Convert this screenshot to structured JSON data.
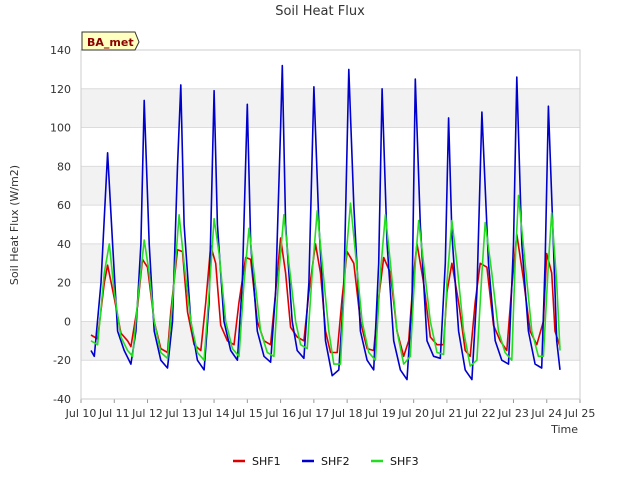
{
  "chart_data": {
    "type": "line",
    "title": "Soil Heat Flux",
    "xlabel": "Time",
    "ylabel": "Soil Heat Flux (W/m2)",
    "ylim": [
      -40,
      140
    ],
    "xlim": [
      10,
      25
    ],
    "yticks": [
      -40,
      -20,
      0,
      20,
      40,
      60,
      80,
      100,
      120,
      140
    ],
    "xticks": [
      {
        "v": 10,
        "label": "Jul 10"
      },
      {
        "v": 11,
        "label": "Jul 11"
      },
      {
        "v": 12,
        "label": "Jul 12"
      },
      {
        "v": 13,
        "label": "Jul 13"
      },
      {
        "v": 14,
        "label": "Jul 14"
      },
      {
        "v": 15,
        "label": "Jul 15"
      },
      {
        "v": 16,
        "label": "Jul 16"
      },
      {
        "v": 17,
        "label": "Jul 17"
      },
      {
        "v": 18,
        "label": "Jul 18"
      },
      {
        "v": 19,
        "label": "Jul 19"
      },
      {
        "v": 20,
        "label": "Jul 20"
      },
      {
        "v": 21,
        "label": "Jul 21"
      },
      {
        "v": 22,
        "label": "Jul 22"
      },
      {
        "v": 23,
        "label": "Jul 23"
      },
      {
        "v": 24,
        "label": "Jul 24"
      },
      {
        "v": 25,
        "label": "Jul 25"
      }
    ],
    "badge": "BA_met",
    "series": [
      {
        "name": "SHF1",
        "color": "#dd0000",
        "points": [
          [
            10.3,
            -7
          ],
          [
            10.5,
            -9
          ],
          [
            10.7,
            20
          ],
          [
            10.8,
            29
          ],
          [
            11.0,
            12
          ],
          [
            11.2,
            -6
          ],
          [
            11.4,
            -10
          ],
          [
            11.5,
            -13
          ],
          [
            11.7,
            8
          ],
          [
            11.85,
            32
          ],
          [
            12.0,
            28
          ],
          [
            12.2,
            0
          ],
          [
            12.4,
            -14
          ],
          [
            12.6,
            -16
          ],
          [
            12.7,
            5
          ],
          [
            12.9,
            37
          ],
          [
            13.05,
            36
          ],
          [
            13.2,
            5
          ],
          [
            13.4,
            -12
          ],
          [
            13.6,
            -15
          ],
          [
            13.75,
            10
          ],
          [
            13.9,
            39
          ],
          [
            14.05,
            30
          ],
          [
            14.2,
            -2
          ],
          [
            14.4,
            -10
          ],
          [
            14.6,
            -12
          ],
          [
            14.75,
            10
          ],
          [
            14.95,
            33
          ],
          [
            15.1,
            32
          ],
          [
            15.3,
            0
          ],
          [
            15.5,
            -10
          ],
          [
            15.7,
            -12
          ],
          [
            15.85,
            15
          ],
          [
            16.0,
            43
          ],
          [
            16.15,
            25
          ],
          [
            16.3,
            -3
          ],
          [
            16.5,
            -8
          ],
          [
            16.7,
            -10
          ],
          [
            16.85,
            15
          ],
          [
            17.05,
            40
          ],
          [
            17.2,
            25
          ],
          [
            17.35,
            -5
          ],
          [
            17.5,
            -16
          ],
          [
            17.7,
            -16
          ],
          [
            17.85,
            12
          ],
          [
            18.0,
            36
          ],
          [
            18.2,
            30
          ],
          [
            18.4,
            0
          ],
          [
            18.6,
            -14
          ],
          [
            18.8,
            -15
          ],
          [
            18.95,
            12
          ],
          [
            19.1,
            33
          ],
          [
            19.3,
            25
          ],
          [
            19.5,
            -5
          ],
          [
            19.7,
            -18
          ],
          [
            19.85,
            -10
          ],
          [
            20.0,
            25
          ],
          [
            20.1,
            40
          ],
          [
            20.3,
            20
          ],
          [
            20.5,
            -8
          ],
          [
            20.7,
            -12
          ],
          [
            20.9,
            -12
          ],
          [
            21.0,
            15
          ],
          [
            21.15,
            30
          ],
          [
            21.35,
            10
          ],
          [
            21.55,
            -15
          ],
          [
            21.7,
            -18
          ],
          [
            21.85,
            10
          ],
          [
            22.0,
            30
          ],
          [
            22.2,
            28
          ],
          [
            22.4,
            -2
          ],
          [
            22.6,
            -10
          ],
          [
            22.8,
            -15
          ],
          [
            22.95,
            18
          ],
          [
            23.1,
            45
          ],
          [
            23.3,
            22
          ],
          [
            23.5,
            -5
          ],
          [
            23.7,
            -12
          ],
          [
            23.9,
            0
          ],
          [
            24.0,
            35
          ],
          [
            24.15,
            25
          ],
          [
            24.25,
            -5
          ],
          [
            24.4,
            -13
          ]
        ]
      },
      {
        "name": "SHF2",
        "color": "#0000cc",
        "points": [
          [
            10.3,
            -15
          ],
          [
            10.4,
            -18
          ],
          [
            10.6,
            20
          ],
          [
            10.8,
            87
          ],
          [
            10.95,
            40
          ],
          [
            11.1,
            -5
          ],
          [
            11.3,
            -15
          ],
          [
            11.5,
            -22
          ],
          [
            11.65,
            -5
          ],
          [
            11.8,
            40
          ],
          [
            11.9,
            114
          ],
          [
            12.05,
            40
          ],
          [
            12.2,
            -5
          ],
          [
            12.4,
            -20
          ],
          [
            12.6,
            -24
          ],
          [
            12.75,
            0
          ],
          [
            12.9,
            80
          ],
          [
            13.0,
            122
          ],
          [
            13.1,
            50
          ],
          [
            13.3,
            0
          ],
          [
            13.5,
            -20
          ],
          [
            13.7,
            -25
          ],
          [
            13.85,
            10
          ],
          [
            14.0,
            119
          ],
          [
            14.1,
            50
          ],
          [
            14.3,
            0
          ],
          [
            14.5,
            -15
          ],
          [
            14.7,
            -20
          ],
          [
            14.85,
            20
          ],
          [
            15.0,
            112
          ],
          [
            15.1,
            40
          ],
          [
            15.3,
            -5
          ],
          [
            15.5,
            -18
          ],
          [
            15.7,
            -21
          ],
          [
            15.85,
            15
          ],
          [
            16.0,
            100
          ],
          [
            16.05,
            132
          ],
          [
            16.15,
            50
          ],
          [
            16.35,
            0
          ],
          [
            16.5,
            -15
          ],
          [
            16.7,
            -19
          ],
          [
            16.85,
            20
          ],
          [
            17.0,
            121
          ],
          [
            17.15,
            50
          ],
          [
            17.35,
            -10
          ],
          [
            17.55,
            -28
          ],
          [
            17.75,
            -25
          ],
          [
            17.9,
            15
          ],
          [
            18.05,
            130
          ],
          [
            18.2,
            60
          ],
          [
            18.4,
            -5
          ],
          [
            18.6,
            -20
          ],
          [
            18.8,
            -25
          ],
          [
            18.95,
            30
          ],
          [
            19.05,
            120
          ],
          [
            19.2,
            40
          ],
          [
            19.4,
            -10
          ],
          [
            19.6,
            -25
          ],
          [
            19.8,
            -30
          ],
          [
            19.95,
            10
          ],
          [
            20.05,
            125
          ],
          [
            20.2,
            50
          ],
          [
            20.4,
            -10
          ],
          [
            20.6,
            -18
          ],
          [
            20.8,
            -19
          ],
          [
            20.95,
            30
          ],
          [
            21.05,
            105
          ],
          [
            21.15,
            45
          ],
          [
            21.35,
            -5
          ],
          [
            21.55,
            -25
          ],
          [
            21.75,
            -30
          ],
          [
            21.9,
            15
          ],
          [
            22.05,
            108
          ],
          [
            22.25,
            30
          ],
          [
            22.45,
            -10
          ],
          [
            22.65,
            -20
          ],
          [
            22.85,
            -22
          ],
          [
            23.0,
            40
          ],
          [
            23.1,
            126
          ],
          [
            23.25,
            40
          ],
          [
            23.45,
            -5
          ],
          [
            23.65,
            -22
          ],
          [
            23.85,
            -24
          ],
          [
            23.95,
            30
          ],
          [
            24.05,
            111
          ],
          [
            24.2,
            40
          ],
          [
            24.3,
            -10
          ],
          [
            24.4,
            -25
          ]
        ]
      },
      {
        "name": "SHF3",
        "color": "#22dd22",
        "points": [
          [
            10.3,
            -10
          ],
          [
            10.5,
            -12
          ],
          [
            10.7,
            25
          ],
          [
            10.85,
            40
          ],
          [
            11.0,
            15
          ],
          [
            11.2,
            -8
          ],
          [
            11.4,
            -15
          ],
          [
            11.55,
            -18
          ],
          [
            11.7,
            10
          ],
          [
            11.9,
            42
          ],
          [
            12.05,
            25
          ],
          [
            12.2,
            0
          ],
          [
            12.4,
            -16
          ],
          [
            12.6,
            -19
          ],
          [
            12.75,
            10
          ],
          [
            12.95,
            55
          ],
          [
            13.1,
            30
          ],
          [
            13.3,
            0
          ],
          [
            13.5,
            -16
          ],
          [
            13.7,
            -20
          ],
          [
            13.85,
            15
          ],
          [
            14.0,
            53
          ],
          [
            14.15,
            35
          ],
          [
            14.35,
            0
          ],
          [
            14.55,
            -14
          ],
          [
            14.75,
            -18
          ],
          [
            14.9,
            20
          ],
          [
            15.05,
            48
          ],
          [
            15.2,
            25
          ],
          [
            15.4,
            -5
          ],
          [
            15.6,
            -16
          ],
          [
            15.8,
            -18
          ],
          [
            15.95,
            25
          ],
          [
            16.1,
            55
          ],
          [
            16.25,
            30
          ],
          [
            16.45,
            0
          ],
          [
            16.6,
            -12
          ],
          [
            16.8,
            -14
          ],
          [
            16.95,
            25
          ],
          [
            17.1,
            57
          ],
          [
            17.25,
            30
          ],
          [
            17.45,
            -5
          ],
          [
            17.6,
            -22
          ],
          [
            17.8,
            -22
          ],
          [
            17.95,
            30
          ],
          [
            18.1,
            61
          ],
          [
            18.25,
            35
          ],
          [
            18.45,
            0
          ],
          [
            18.65,
            -16
          ],
          [
            18.85,
            -20
          ],
          [
            19.0,
            25
          ],
          [
            19.15,
            55
          ],
          [
            19.3,
            30
          ],
          [
            19.5,
            -5
          ],
          [
            19.7,
            -22
          ],
          [
            19.9,
            -18
          ],
          [
            20.05,
            30
          ],
          [
            20.15,
            52
          ],
          [
            20.3,
            30
          ],
          [
            20.5,
            0
          ],
          [
            20.7,
            -16
          ],
          [
            20.9,
            -17
          ],
          [
            21.0,
            20
          ],
          [
            21.15,
            52
          ],
          [
            21.3,
            30
          ],
          [
            21.5,
            -5
          ],
          [
            21.7,
            -23
          ],
          [
            21.9,
            -20
          ],
          [
            22.05,
            25
          ],
          [
            22.15,
            51
          ],
          [
            22.35,
            25
          ],
          [
            22.55,
            -5
          ],
          [
            22.75,
            -16
          ],
          [
            22.95,
            -20
          ],
          [
            23.05,
            30
          ],
          [
            23.15,
            65
          ],
          [
            23.35,
            30
          ],
          [
            23.55,
            -5
          ],
          [
            23.75,
            -18
          ],
          [
            23.9,
            -18
          ],
          [
            24.05,
            30
          ],
          [
            24.15,
            56
          ],
          [
            24.3,
            20
          ],
          [
            24.4,
            -15
          ]
        ]
      }
    ]
  }
}
